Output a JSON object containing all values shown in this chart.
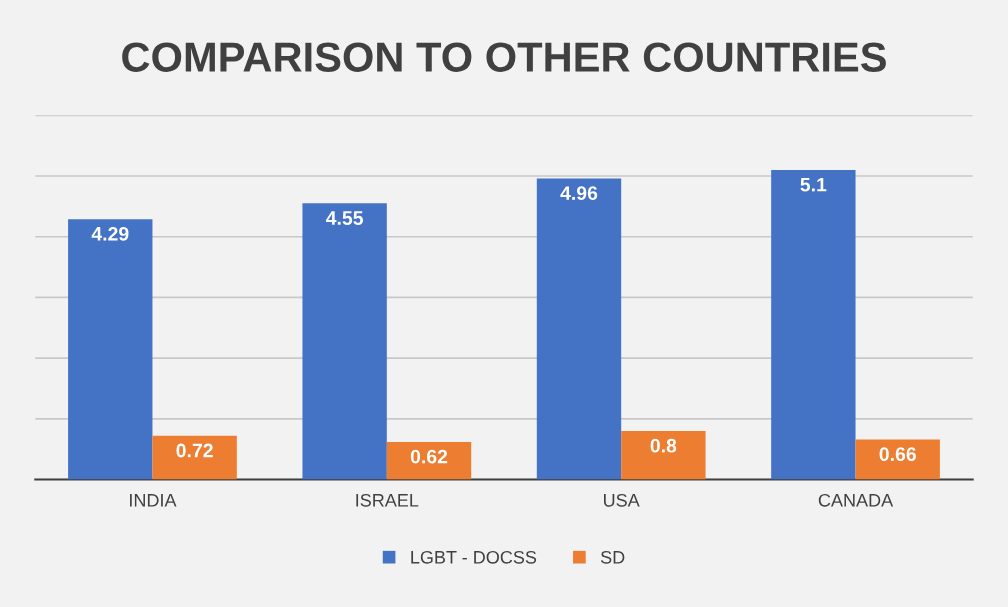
{
  "chart_data": {
    "type": "bar",
    "title": "COMPARISON TO OTHER COUNTRIES",
    "categories": [
      "INDIA",
      "ISRAEL",
      "USA",
      "CANADA"
    ],
    "series": [
      {
        "name": "LGBT - DOCSS",
        "color": "#4472c4",
        "values": [
          4.29,
          4.55,
          4.96,
          5.1
        ]
      },
      {
        "name": "SD",
        "color": "#ed7d31",
        "values": [
          0.72,
          0.62,
          0.8,
          0.66
        ]
      }
    ],
    "ylim": [
      0,
      6
    ],
    "yticks": [
      0,
      1,
      2,
      3,
      4,
      5,
      6
    ],
    "tick_labels": "x",
    "grid": "y",
    "legend": "bottom",
    "data_labels": true
  }
}
